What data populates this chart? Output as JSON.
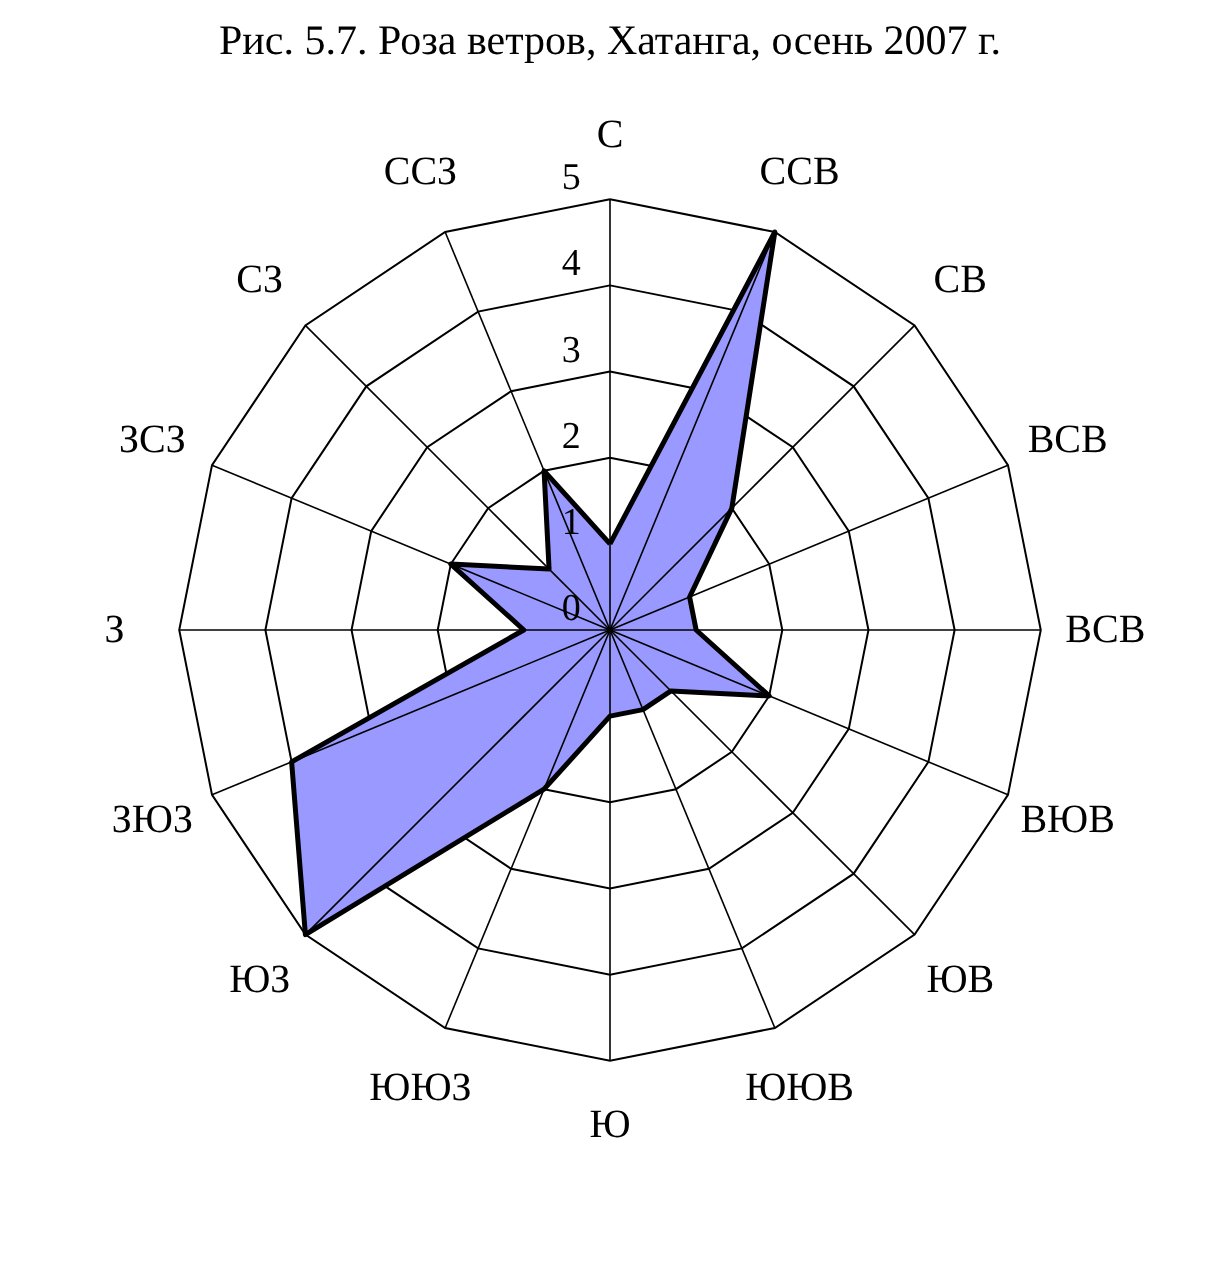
{
  "chart_data": {
    "type": "radar",
    "title": "Рис. 5.7. Роза ветров, Хатанга, осень 2007 г.",
    "categories": [
      "С",
      "ССВ",
      "СВ",
      "ВСВ",
      "ВСВ",
      "ВЮВ",
      "ЮВ",
      "ЮЮВ",
      "Ю",
      "ЮЮЗ",
      "ЮЗ",
      "ЗЮЗ",
      "З",
      "ЗСЗ",
      "СЗ",
      "ССЗ"
    ],
    "series": [
      {
        "color": "#9999ff",
        "values": [
          1,
          5,
          2,
          1,
          1,
          2,
          1,
          1,
          1,
          2,
          5,
          4,
          1,
          2,
          1,
          2
        ]
      }
    ],
    "ylim": [
      0,
      5
    ],
    "yticks": [
      0,
      1,
      2,
      3,
      4,
      5
    ],
    "grid": true,
    "marker": "none"
  }
}
